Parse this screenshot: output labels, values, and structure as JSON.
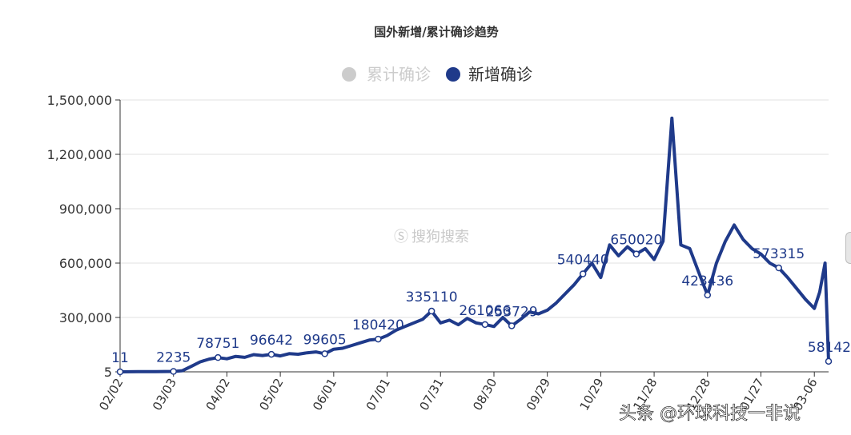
{
  "chart_data": {
    "type": "line",
    "title": "国外新增/累计确诊趋势",
    "legend": [
      {
        "name": "累计确诊",
        "color": "#cccccc",
        "visible": false
      },
      {
        "name": "新增确诊",
        "color": "#1f3a8a",
        "visible": true
      }
    ],
    "ylim": [
      5,
      1500000
    ],
    "yticks": [
      "5",
      "300,000",
      "600,000",
      "900,000",
      "1,200,000",
      "1,500,000"
    ],
    "ytick_values": [
      5,
      300000,
      600000,
      900000,
      1200000,
      1500000
    ],
    "xticks": [
      "02/02",
      "03/03",
      "04/02",
      "05/02",
      "06/01",
      "07/01",
      "07/31",
      "08/30",
      "09/29",
      "10/29",
      "11/28",
      "12/28",
      "01/27",
      "03-06"
    ],
    "x_day_span": [
      0,
      398
    ],
    "series": [
      {
        "name": "新增确诊",
        "color": "#1f3a8a",
        "points": [
          [
            0,
            11
          ],
          [
            10,
            800
          ],
          [
            20,
            1500
          ],
          [
            30,
            2235
          ],
          [
            35,
            6000
          ],
          [
            40,
            30000
          ],
          [
            45,
            55000
          ],
          [
            50,
            70000
          ],
          [
            55,
            78751
          ],
          [
            60,
            72000
          ],
          [
            65,
            85000
          ],
          [
            70,
            80000
          ],
          [
            75,
            95000
          ],
          [
            80,
            90000
          ],
          [
            85,
            96642
          ],
          [
            90,
            88000
          ],
          [
            95,
            100000
          ],
          [
            100,
            97000
          ],
          [
            105,
            105000
          ],
          [
            110,
            110000
          ],
          [
            115,
            99605
          ],
          [
            120,
            125000
          ],
          [
            125,
            130000
          ],
          [
            130,
            145000
          ],
          [
            135,
            160000
          ],
          [
            140,
            175000
          ],
          [
            145,
            180420
          ],
          [
            150,
            200000
          ],
          [
            155,
            230000
          ],
          [
            160,
            250000
          ],
          [
            165,
            270000
          ],
          [
            170,
            290000
          ],
          [
            175,
            335110
          ],
          [
            180,
            270000
          ],
          [
            185,
            285000
          ],
          [
            190,
            260000
          ],
          [
            195,
            295000
          ],
          [
            200,
            270000
          ],
          [
            205,
            261066
          ],
          [
            210,
            250000
          ],
          [
            215,
            300000
          ],
          [
            220,
            253729
          ],
          [
            225,
            290000
          ],
          [
            230,
            330000
          ],
          [
            235,
            320000
          ],
          [
            240,
            340000
          ],
          [
            245,
            380000
          ],
          [
            250,
            430000
          ],
          [
            255,
            480000
          ],
          [
            260,
            540440
          ],
          [
            265,
            600000
          ],
          [
            270,
            520000
          ],
          [
            275,
            700000
          ],
          [
            280,
            640000
          ],
          [
            285,
            690000
          ],
          [
            290,
            650020
          ],
          [
            295,
            680000
          ],
          [
            300,
            620000
          ],
          [
            305,
            720000
          ],
          [
            310,
            1400000
          ],
          [
            315,
            700000
          ],
          [
            320,
            680000
          ],
          [
            325,
            550000
          ],
          [
            330,
            423436
          ],
          [
            335,
            600000
          ],
          [
            340,
            720000
          ],
          [
            345,
            810000
          ],
          [
            350,
            730000
          ],
          [
            355,
            680000
          ],
          [
            360,
            650000
          ],
          [
            365,
            600000
          ],
          [
            370,
            573315
          ],
          [
            375,
            520000
          ],
          [
            380,
            460000
          ],
          [
            385,
            400000
          ],
          [
            390,
            350000
          ],
          [
            393,
            440000
          ],
          [
            396,
            600000
          ],
          [
            398,
            58142
          ]
        ]
      }
    ],
    "data_labels": [
      {
        "day": 0,
        "value": 11,
        "text": "11"
      },
      {
        "day": 30,
        "value": 2235,
        "text": "2235"
      },
      {
        "day": 55,
        "value": 78751,
        "text": "78751"
      },
      {
        "day": 85,
        "value": 96642,
        "text": "96642"
      },
      {
        "day": 115,
        "value": 99605,
        "text": "99605"
      },
      {
        "day": 145,
        "value": 180420,
        "text": "180420"
      },
      {
        "day": 175,
        "value": 335110,
        "text": "335110"
      },
      {
        "day": 205,
        "value": 261066,
        "text": "261066"
      },
      {
        "day": 220,
        "value": 253729,
        "text": "253729"
      },
      {
        "day": 260,
        "value": 540440,
        "text": "540440"
      },
      {
        "day": 290,
        "value": 650020,
        "text": "650020"
      },
      {
        "day": 330,
        "value": 423436,
        "text": "423436"
      },
      {
        "day": 370,
        "value": 573315,
        "text": "573315"
      },
      {
        "day": 398,
        "value": 58142,
        "text": "58142"
      }
    ]
  },
  "watermark": "搜狗搜索",
  "credit": "头条 @环球科技一非说"
}
